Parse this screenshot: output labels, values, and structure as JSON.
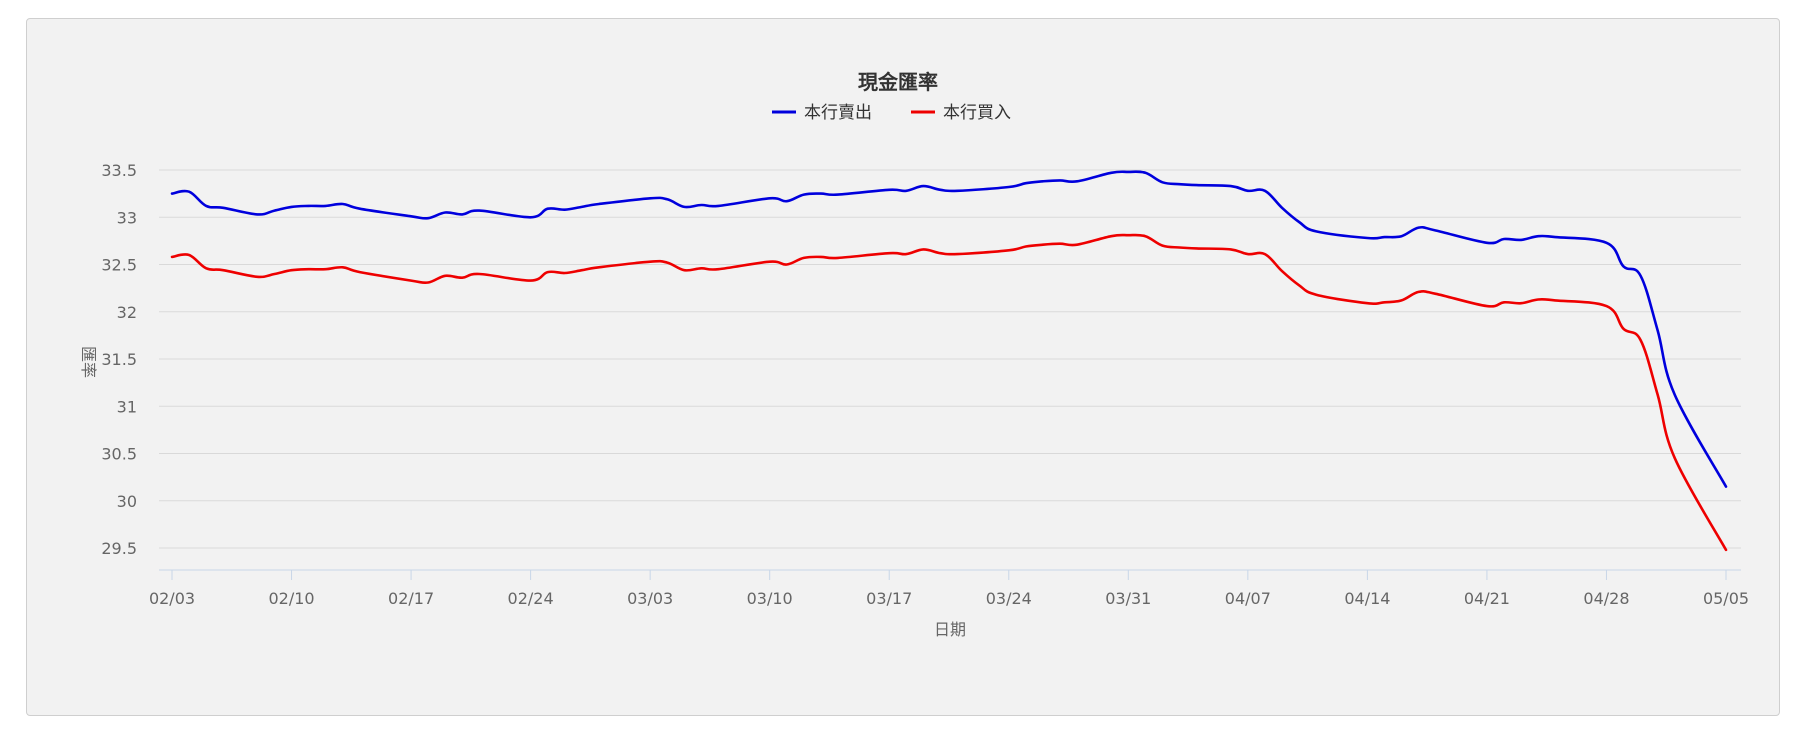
{
  "chart_data": {
    "type": "line",
    "title": "現金匯率",
    "xlabel": "日期",
    "ylabel": "匯率",
    "ylim": [
      29.5,
      33.5
    ],
    "yticks": [
      "29.5",
      "30",
      "30.5",
      "31",
      "31.5",
      "32",
      "32.5",
      "33",
      "33.5"
    ],
    "xtick_labels": [
      "02/03",
      "02/10",
      "02/17",
      "02/24",
      "03/03",
      "03/10",
      "03/17",
      "03/24",
      "03/31",
      "04/07",
      "04/14",
      "04/21",
      "04/28",
      "05/05"
    ],
    "grid": true,
    "legend_position": "top",
    "x": [
      0,
      1,
      2,
      3,
      5,
      6,
      7,
      8,
      9,
      10,
      11,
      14,
      15,
      16,
      17,
      18,
      21,
      22,
      23,
      24,
      25,
      28,
      29,
      30,
      31,
      32,
      35,
      36,
      37,
      38,
      39,
      42,
      43,
      44,
      45,
      46,
      49,
      50,
      51,
      52,
      53,
      55,
      56,
      57,
      58,
      59,
      60,
      62,
      63,
      64,
      65,
      66,
      67,
      70,
      71,
      72,
      73,
      74,
      77,
      78,
      79,
      80,
      81,
      84,
      85,
      86,
      87,
      88,
      91
    ],
    "series": [
      {
        "name": "本行賣出",
        "color": "#0000dd",
        "values": [
          33.25,
          33.27,
          33.12,
          33.1,
          33.03,
          33.07,
          33.11,
          33.12,
          33.12,
          33.14,
          33.09,
          33.01,
          32.99,
          33.05,
          33.03,
          33.07,
          33.0,
          33.09,
          33.08,
          33.11,
          33.14,
          33.2,
          33.19,
          33.11,
          33.13,
          33.12,
          33.2,
          33.17,
          33.24,
          33.25,
          33.24,
          33.29,
          33.28,
          33.33,
          33.29,
          33.28,
          33.32,
          33.36,
          33.38,
          33.39,
          33.38,
          33.47,
          33.48,
          33.47,
          33.37,
          33.35,
          33.34,
          33.33,
          33.28,
          33.28,
          33.1,
          32.95,
          32.85,
          32.78,
          32.79,
          32.8,
          32.89,
          32.86,
          32.73,
          32.77,
          32.76,
          32.8,
          32.79,
          32.73,
          32.48,
          32.38,
          31.8,
          31.12,
          30.15
        ]
      },
      {
        "name": "本行買入",
        "color": "#ee0000",
        "values": [
          32.58,
          32.6,
          32.46,
          32.44,
          32.37,
          32.4,
          32.44,
          32.45,
          32.45,
          32.47,
          32.42,
          32.33,
          32.31,
          32.38,
          32.36,
          32.4,
          32.33,
          32.42,
          32.41,
          32.44,
          32.47,
          32.53,
          32.52,
          32.44,
          32.46,
          32.45,
          32.53,
          32.5,
          32.57,
          32.58,
          32.57,
          32.62,
          32.61,
          32.66,
          32.62,
          32.61,
          32.65,
          32.69,
          32.71,
          32.72,
          32.71,
          32.8,
          32.81,
          32.8,
          32.7,
          32.68,
          32.67,
          32.66,
          32.61,
          32.61,
          32.43,
          32.28,
          32.18,
          32.09,
          32.1,
          32.12,
          32.21,
          32.19,
          32.06,
          32.1,
          32.09,
          32.13,
          32.12,
          32.06,
          31.82,
          31.7,
          31.12,
          30.45,
          29.48
        ]
      }
    ]
  }
}
